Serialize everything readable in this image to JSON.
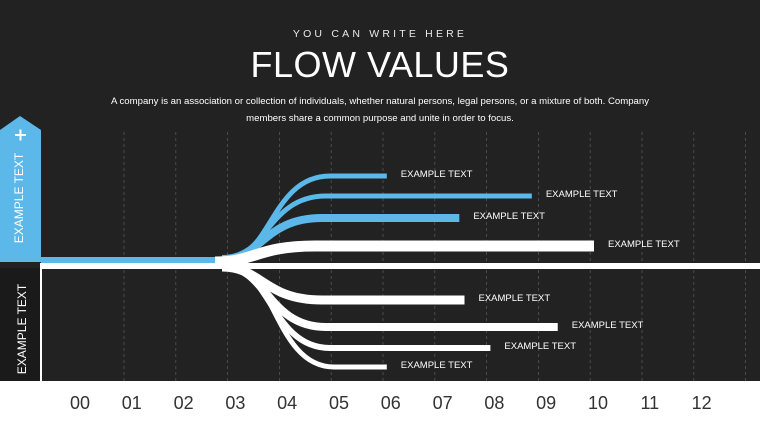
{
  "header": {
    "eyebrow": "YOU CAN WRITE HERE",
    "title": "FLOW VALUES",
    "description": "A company is an association or collection of individuals, whether natural persons, legal persons, or a mixture of both. Company members share a common purpose and unite in order to focus."
  },
  "side": {
    "top_label": "EXAMPLE TEXT",
    "bottom_label": "EXAMPLE TEXT",
    "plus": "+",
    "minus": "—"
  },
  "axis": [
    "00",
    "01",
    "02",
    "03",
    "04",
    "05",
    "06",
    "07",
    "08",
    "09",
    "10",
    "11",
    "12"
  ],
  "flows": [
    {
      "label": "EXAMPLE TEXT",
      "end": 6.0,
      "group": "blue"
    },
    {
      "label": "EXAMPLE TEXT",
      "end": 8.8,
      "group": "blue"
    },
    {
      "label": "EXAMPLE TEXT",
      "end": 7.4,
      "group": "blue"
    },
    {
      "label": "EXAMPLE TEXT",
      "end": 10.0,
      "group": "white"
    },
    {
      "label": "EXAMPLE TEXT",
      "end": 7.5,
      "group": "white"
    },
    {
      "label": "EXAMPLE TEXT",
      "end": 9.3,
      "group": "white"
    },
    {
      "label": "EXAMPLE TEXT",
      "end": 8.0,
      "group": "white"
    },
    {
      "label": "EXAMPLE TEXT",
      "end": 6.0,
      "group": "white"
    }
  ],
  "colors": {
    "background": "#222222",
    "accent": "#5bb8e8",
    "flow": "#ffffff",
    "grid": "#555555"
  }
}
